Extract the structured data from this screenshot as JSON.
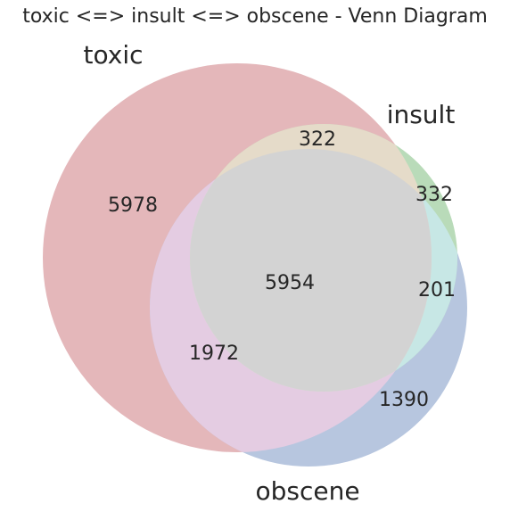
{
  "diagram": {
    "title": "toxic <=> insult <=> obscene - Venn Diagram",
    "sets": [
      {
        "name": "toxic",
        "color": "#e4b7ba"
      },
      {
        "name": "insult",
        "color": "#b9dbb9"
      },
      {
        "name": "obscene",
        "color": "#b7c6df"
      }
    ],
    "regions": {
      "toxic_only": "5978",
      "toxic_insult": "322",
      "insult_only": "332",
      "all_three": "5954",
      "insult_obscene": "201",
      "toxic_obscene": "1972",
      "obscene_only": "1390"
    },
    "region_colors": {
      "toxic_insult": "#e5dbc9",
      "insult_obscene": "#c7e7e5",
      "toxic_obscene": "#e4cce2",
      "all_three": "#d3d3d3"
    }
  }
}
